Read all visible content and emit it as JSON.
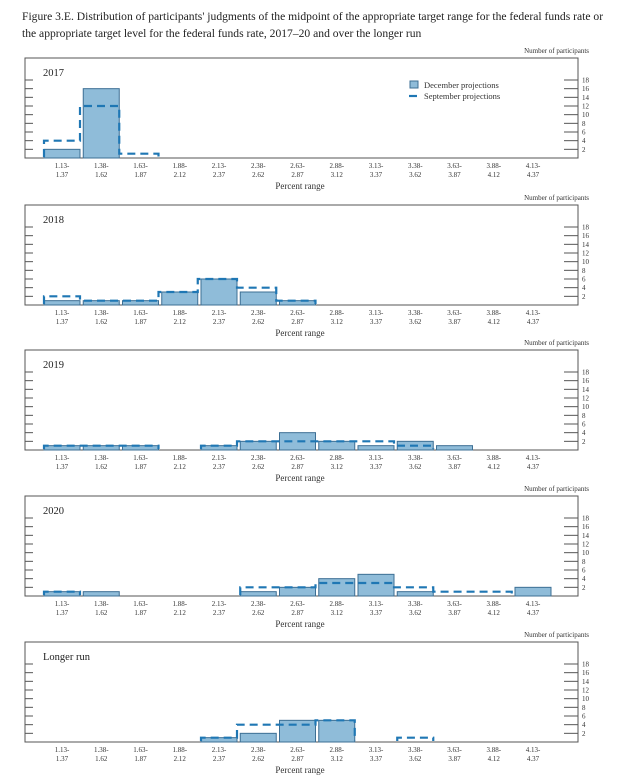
{
  "caption": "Figure 3.E. Distribution of participants' judgments of the midpoint of the appropriate target range for the federal funds rate or the appropriate target level for the federal funds rate, 2017–20 and over the longer run",
  "colors": {
    "december": "#8fbcd9",
    "december_stroke": "#3d6f94",
    "september": "#1f77b4"
  },
  "chart_data": {
    "type": "bar",
    "ylabel": "Number of participants",
    "xlabel": "Percent range",
    "ylim": [
      0,
      18
    ],
    "yticks": [
      2,
      4,
      6,
      8,
      10,
      12,
      14,
      16,
      18
    ],
    "categories": [
      {
        "top": "1.13-",
        "bottom": "1.37"
      },
      {
        "top": "1.38-",
        "bottom": "1.62"
      },
      {
        "top": "1.63-",
        "bottom": "1.87"
      },
      {
        "top": "1.88-",
        "bottom": "2.12"
      },
      {
        "top": "2.13-",
        "bottom": "2.37"
      },
      {
        "top": "2.38-",
        "bottom": "2.62"
      },
      {
        "top": "2.63-",
        "bottom": "2.87"
      },
      {
        "top": "2.88-",
        "bottom": "3.12"
      },
      {
        "top": "3.13-",
        "bottom": "3.37"
      },
      {
        "top": "3.38-",
        "bottom": "3.62"
      },
      {
        "top": "3.63-",
        "bottom": "3.87"
      },
      {
        "top": "3.88-",
        "bottom": "4.12"
      },
      {
        "top": "4.13-",
        "bottom": "4.37"
      }
    ],
    "legend": [
      "December projections",
      "September projections"
    ],
    "panels": [
      {
        "title": "2017",
        "december": [
          2,
          16,
          0,
          0,
          0,
          0,
          0,
          0,
          0,
          0,
          0,
          0,
          0
        ],
        "september": [
          4,
          12,
          1,
          0,
          0,
          0,
          0,
          0,
          0,
          0,
          0,
          0,
          0
        ]
      },
      {
        "title": "2018",
        "december": [
          1,
          1,
          1,
          3,
          6,
          3,
          1,
          0,
          0,
          0,
          0,
          0,
          0
        ],
        "september": [
          2,
          1,
          1,
          3,
          6,
          4,
          1,
          0,
          0,
          0,
          0,
          0,
          0
        ]
      },
      {
        "title": "2019",
        "december": [
          1,
          1,
          1,
          0,
          1,
          2,
          4,
          2,
          1,
          2,
          1,
          0,
          0
        ],
        "september": [
          1,
          1,
          1,
          0,
          1,
          2,
          2,
          2,
          2,
          1,
          0,
          0,
          0
        ]
      },
      {
        "title": "2020",
        "december": [
          1,
          1,
          0,
          0,
          0,
          1,
          2,
          4,
          5,
          1,
          0,
          0,
          2
        ],
        "september": [
          1,
          0,
          0,
          0,
          0,
          2,
          2,
          3,
          3,
          2,
          1,
          1,
          0
        ]
      },
      {
        "title": "Longer run",
        "december": [
          0,
          0,
          0,
          0,
          1,
          2,
          5,
          5,
          0,
          0,
          0,
          0,
          0
        ],
        "september": [
          0,
          0,
          0,
          0,
          1,
          4,
          4,
          5,
          0,
          1,
          0,
          0,
          0
        ]
      }
    ]
  }
}
